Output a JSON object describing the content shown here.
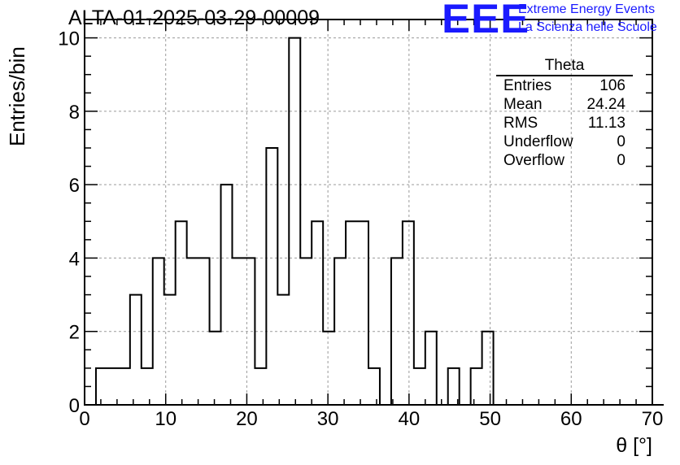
{
  "chart_data": {
    "type": "bar",
    "title": "ALTA-01-2025-03-29-00009",
    "xlabel": "θ [°]",
    "ylabel": "Entries/bin",
    "xlim": [
      0,
      70
    ],
    "ylim": [
      0,
      10.5
    ],
    "x_ticks": [
      "0",
      "10",
      "20",
      "30",
      "40",
      "50",
      "60",
      "70"
    ],
    "y_ticks": [
      "0",
      "2",
      "4",
      "6",
      "8",
      "10"
    ],
    "grid": true,
    "histogram": {
      "bin_width": 1.4,
      "bin_edges_start": 1.4,
      "values": [
        1,
        1,
        1,
        3,
        1,
        4,
        3,
        5,
        4,
        4,
        2,
        6,
        4,
        4,
        1,
        7,
        3,
        10,
        4,
        5,
        2,
        4,
        5,
        5,
        1,
        0,
        4,
        5,
        1,
        2,
        0,
        1,
        0,
        1,
        2,
        0,
        0,
        0,
        0,
        0,
        0,
        0,
        0,
        0,
        0,
        0,
        0,
        0,
        0,
        0
      ]
    },
    "stats": {
      "title": "Theta",
      "rows": [
        {
          "label": "Entries",
          "value": "106"
        },
        {
          "label": "Mean",
          "value": "24.24"
        },
        {
          "label": "RMS",
          "value": "11.13"
        },
        {
          "label": "Underflow",
          "value": "0"
        },
        {
          "label": "Overflow",
          "value": "0"
        }
      ]
    }
  },
  "logo": {
    "text": "EEE",
    "line1": "Extreme Energy Events",
    "line2": "La Scienza nelle Scuole",
    "color": "#1a1aff"
  }
}
